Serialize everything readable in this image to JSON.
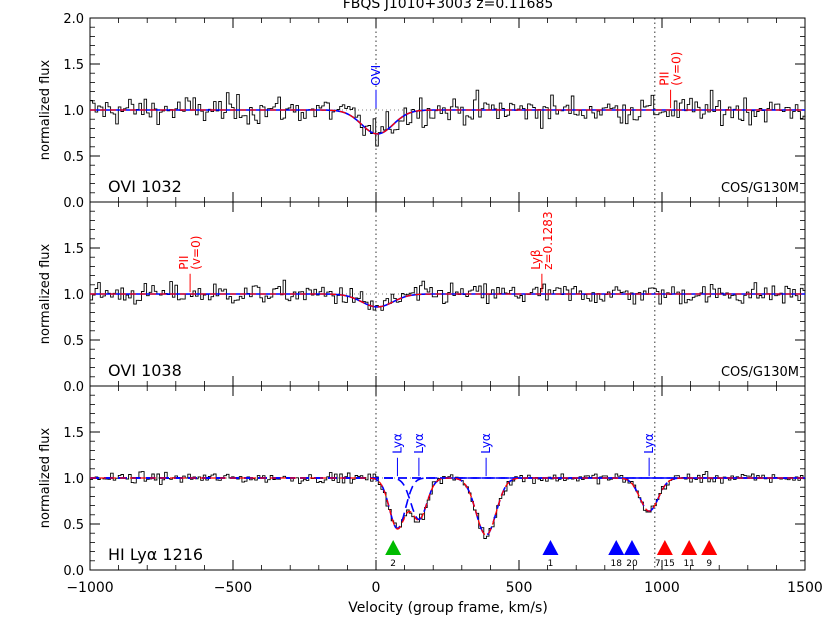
{
  "page_title": "FBQS J1010+3003 z=0.11685",
  "chart_data": {
    "type": "line",
    "title": "FBQS J1010+3003 z=0.11685",
    "xlabel": "Velocity (group frame, km/s)",
    "xlim": [
      -1000,
      1500
    ],
    "x_ticks": [
      -1000,
      -500,
      0,
      500,
      1000,
      1500
    ],
    "x_tick_labels": [
      "−1000",
      "−500",
      "0",
      "500",
      "1000",
      "1500"
    ],
    "panels": [
      {
        "name": "OVI 1032",
        "ylabel": "normalized flux",
        "ylim": [
          0,
          2
        ],
        "y_ticks": [
          0,
          0.5,
          1.0,
          1.5,
          2.0
        ],
        "y_tick_labels": [
          "0.0",
          "0.5",
          "1.0",
          "1.5",
          "2.0"
        ],
        "label": "OVI 1032",
        "instrument": "COS/G130M",
        "guides": [
          0,
          975
        ],
        "noise": 0.2,
        "fit_components": [
          {
            "center": 5,
            "depth": 0.26,
            "width": 55
          }
        ],
        "annotations": [
          {
            "text": "OVI",
            "x": 0,
            "color": "#0000ff"
          },
          {
            "text": "PII\n(v=0)",
            "x": 1030,
            "color": "#ff0000"
          }
        ]
      },
      {
        "name": "OVI 1038",
        "ylabel": "normalized flux",
        "ylim": [
          0,
          2
        ],
        "y_ticks": [
          0,
          0.5,
          1.0,
          1.5
        ],
        "y_tick_labels": [
          "0.0",
          "0.5",
          "1.0",
          "1.5"
        ],
        "label": "OVI 1038",
        "instrument": "COS/G130M",
        "guides": [
          0,
          975
        ],
        "noise": 0.15,
        "fit_components": [
          {
            "center": 5,
            "depth": 0.14,
            "width": 55
          }
        ],
        "annotations": [
          {
            "text": "PII\n(v=0)",
            "x": -650,
            "color": "#ff0000"
          },
          {
            "text": "Lyβ\nz=0.1283",
            "x": 580,
            "color": "#ff0000"
          }
        ]
      },
      {
        "name": "HI Lyα 1216",
        "ylabel": "normalized flux",
        "ylim": [
          0,
          2
        ],
        "y_ticks": [
          0,
          0.5,
          1.0,
          1.5
        ],
        "y_tick_labels": [
          "0.0",
          "0.5",
          "1.0",
          "1.5"
        ],
        "label": "HI Lyα 1216",
        "instrument": "",
        "guides": [
          0,
          975
        ],
        "noise": 0.07,
        "fit_components": [
          {
            "center": 75,
            "depth": 0.55,
            "width": 28
          },
          {
            "center": 150,
            "depth": 0.45,
            "width": 28
          },
          {
            "center": 385,
            "depth": 0.62,
            "width": 35
          },
          {
            "center": 955,
            "depth": 0.36,
            "width": 32
          }
        ],
        "annotations": [
          {
            "text": "Lyα",
            "x": 75,
            "color": "#0000ff"
          },
          {
            "text": "Lyα",
            "x": 150,
            "color": "#0000ff"
          },
          {
            "text": "Lyα",
            "x": 385,
            "color": "#0000ff"
          },
          {
            "text": "Lyα",
            "x": 955,
            "color": "#0000ff"
          }
        ],
        "galaxy_markers": [
          {
            "x": 60,
            "label": "2",
            "color": "#00bb00"
          },
          {
            "x": 610,
            "label": "1",
            "color": "#0000ff"
          },
          {
            "x": 840,
            "label": "18",
            "color": "#0000ff"
          },
          {
            "x": 895,
            "label": "20",
            "color": "#0000ff"
          },
          {
            "x": 1010,
            "label": "7,15",
            "color": "#ff0000"
          },
          {
            "x": 1095,
            "label": "11",
            "color": "#ff0000"
          },
          {
            "x": 1165,
            "label": "9",
            "color": "#ff0000"
          }
        ]
      }
    ],
    "colors": {
      "data": "#000000",
      "fit_total": "#ff0000",
      "fit_components": "#0000ff",
      "guides": "#000000"
    }
  }
}
